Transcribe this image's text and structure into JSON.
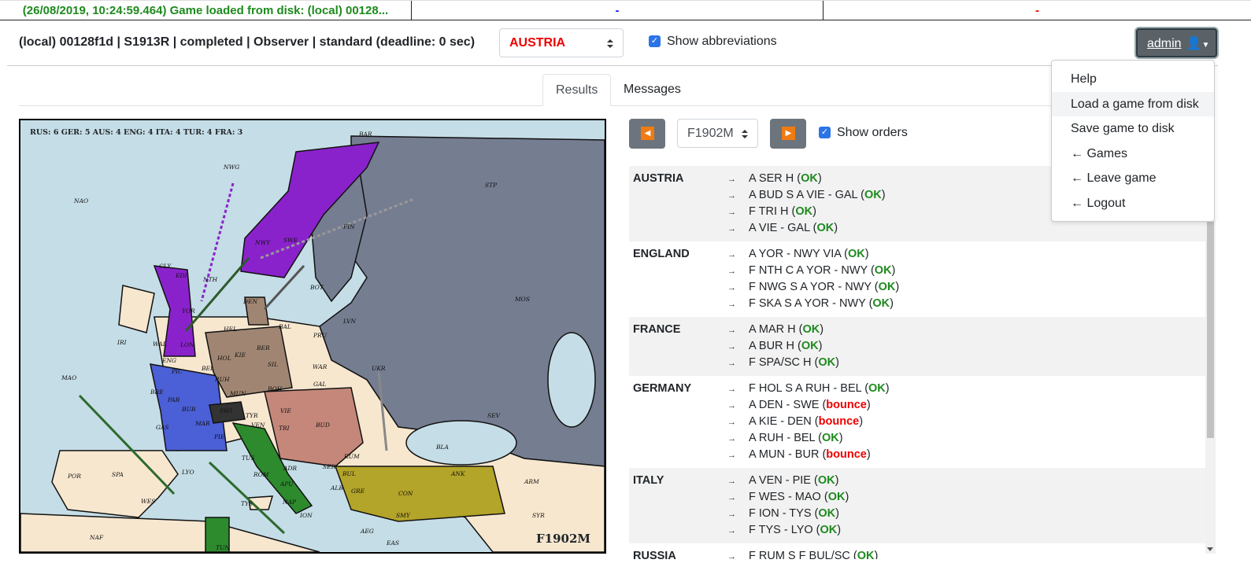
{
  "status_bar": {
    "message": "(26/08/2019, 10:24:59.464) Game loaded from disk: (local) 00128...",
    "middle": "-",
    "right": "-"
  },
  "header": {
    "game_info": "(local) 00128f1d | S1913R | completed | Observer | standard (deadline: 0 sec)",
    "power_select": "AUSTRIA",
    "show_abbreviations_label": "Show abbreviations",
    "show_abbreviations_checked": true,
    "user_button": "admin"
  },
  "user_menu": {
    "items": [
      "Help",
      "Load a game from disk",
      "Save game to disk",
      "← Games",
      "← Leave game",
      "← Logout"
    ]
  },
  "tabs": [
    "Results",
    "Messages"
  ],
  "active_tab": "Results",
  "map": {
    "scores": "RUS: 6 GER: 5 AUS: 4 ENG: 4 ITA: 4 TUR: 4 FRA: 3",
    "phase": "F1902M",
    "labels": [
      "BAR",
      "NWG",
      "NAO",
      "STP",
      "FIN",
      "NWY",
      "SWE",
      "CLY",
      "EDI",
      "NTH",
      "DEN",
      "BOT",
      "MOS",
      "IRI",
      "YOR",
      "HEL",
      "BAL",
      "LVN",
      "WAL",
      "LON",
      "KIE",
      "BER",
      "PRU",
      "ENG",
      "PIC",
      "BEL",
      "HOL",
      "RUH",
      "SIL",
      "WAR",
      "MAO",
      "BRE",
      "PAR",
      "BUR",
      "MUN",
      "BOH",
      "GAL",
      "UKR",
      "SEV",
      "GAS",
      "MAR",
      "SWI",
      "TYR",
      "VIE",
      "BUD",
      "PIE",
      "VEN",
      "TRI",
      "RUM",
      "BLA",
      "SPA",
      "POR",
      "LYO",
      "TUS",
      "ROM",
      "ADR",
      "SER",
      "BUL",
      "ANK",
      "ARM",
      "WES",
      "TYS",
      "APU",
      "NAP",
      "ALB",
      "GRE",
      "CON",
      "SMY",
      "ION",
      "AEG",
      "EAS",
      "SYR",
      "NAF",
      "TUN"
    ],
    "colors": {
      "sea": "#c5dde6",
      "land": "#f7e7cf",
      "russia": "#757d91",
      "england": "#8a22cc",
      "germany": "#a08672",
      "france": "#4b5fd6",
      "austria": "#c4877a",
      "italy": "#2d8a2d",
      "turkey": "#b3a42a"
    }
  },
  "controls": {
    "prev_icon": "triangle-left",
    "next_icon": "triangle-right",
    "phase_select": "F1902M",
    "show_orders_label": "Show orders",
    "show_orders_checked": true
  },
  "orders": [
    {
      "power": "AUSTRIA",
      "orders": [
        {
          "text": "A SER H",
          "result": "OK"
        },
        {
          "text": "A BUD S A VIE - GAL",
          "result": "OK"
        },
        {
          "text": "F TRI H",
          "result": "OK"
        },
        {
          "text": "A VIE - GAL",
          "result": "OK"
        }
      ]
    },
    {
      "power": "ENGLAND",
      "orders": [
        {
          "text": "A YOR - NWY VIA",
          "result": "OK"
        },
        {
          "text": "F NTH C A YOR - NWY",
          "result": "OK"
        },
        {
          "text": "F NWG S A YOR - NWY",
          "result": "OK"
        },
        {
          "text": "F SKA S A YOR - NWY",
          "result": "OK"
        }
      ]
    },
    {
      "power": "FRANCE",
      "orders": [
        {
          "text": "A MAR H",
          "result": "OK"
        },
        {
          "text": "A BUR H",
          "result": "OK"
        },
        {
          "text": "F SPA/SC H",
          "result": "OK"
        }
      ]
    },
    {
      "power": "GERMANY",
      "orders": [
        {
          "text": "F HOL S A RUH - BEL",
          "result": "OK"
        },
        {
          "text": "A DEN - SWE",
          "result": "bounce"
        },
        {
          "text": "A KIE - DEN",
          "result": "bounce"
        },
        {
          "text": "A RUH - BEL",
          "result": "OK"
        },
        {
          "text": "A MUN - BUR",
          "result": "bounce"
        }
      ]
    },
    {
      "power": "ITALY",
      "orders": [
        {
          "text": "A VEN - PIE",
          "result": "OK"
        },
        {
          "text": "F WES - MAO",
          "result": "OK"
        },
        {
          "text": "F ION - TYS",
          "result": "OK"
        },
        {
          "text": "F TYS - LYO",
          "result": "OK"
        }
      ]
    },
    {
      "power": "RUSSIA",
      "orders": [
        {
          "text": "F RUM S F BUL/SC",
          "result": "OK"
        }
      ]
    }
  ]
}
